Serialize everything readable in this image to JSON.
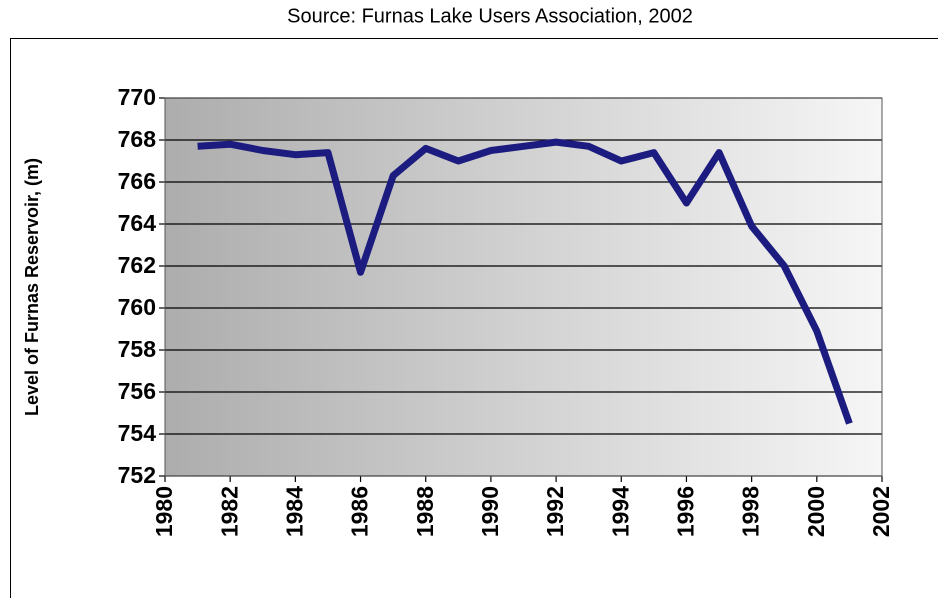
{
  "chart_data": {
    "type": "line",
    "title": "Source: Furnas Lake Users Association, 2002",
    "y_label": "Level of Furnas Reservoir, (m)",
    "x": [
      1981,
      1982,
      1983,
      1984,
      1985,
      1986,
      1987,
      1988,
      1989,
      1990,
      1991,
      1992,
      1993,
      1994,
      1995,
      1996,
      1997,
      1998,
      1999,
      2000,
      2001
    ],
    "series": [
      {
        "name": "Level",
        "color": "#1c1c80",
        "values": [
          767.7,
          767.8,
          767.5,
          767.3,
          767.4,
          761.7,
          766.3,
          767.6,
          767.0,
          767.5,
          767.7,
          767.9,
          767.7,
          767.0,
          767.4,
          765.0,
          767.4,
          763.9,
          762.0,
          758.9,
          754.5
        ]
      }
    ],
    "xlim": [
      1980,
      2002
    ],
    "xticks": [
      1980,
      1982,
      1984,
      1986,
      1988,
      1990,
      1992,
      1994,
      1996,
      1998,
      2000,
      2002
    ],
    "ylim": [
      752,
      770
    ],
    "yticks": [
      752,
      754,
      756,
      758,
      760,
      762,
      764,
      766,
      768,
      770
    ],
    "grid": true
  }
}
